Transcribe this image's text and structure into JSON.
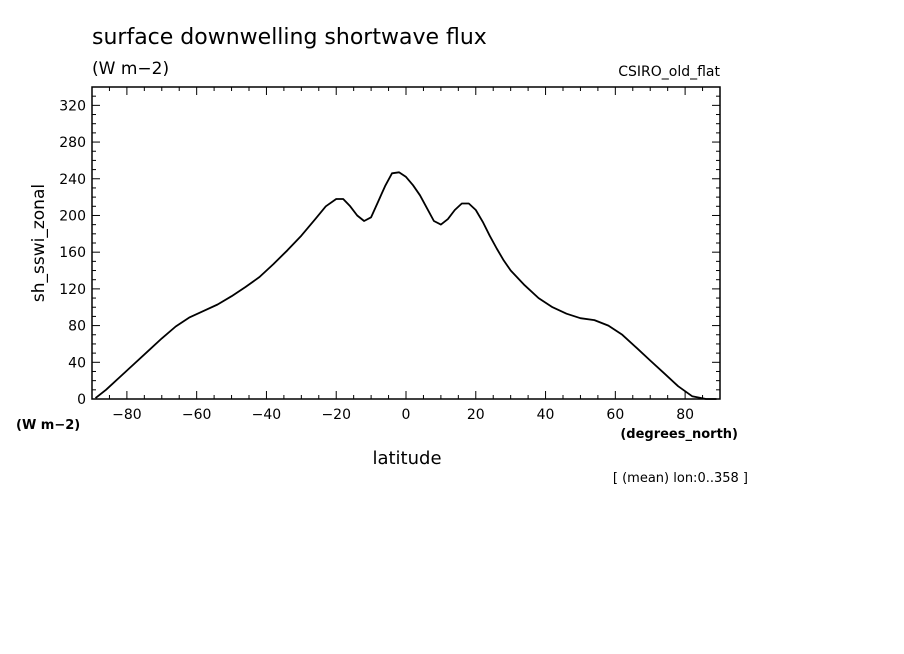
{
  "chart_data": {
    "type": "line",
    "title": "surface downwelling shortwave flux",
    "units": "(W m−2)",
    "model": "CSIRO_old_flat",
    "ylabel": "sh_sswi_zonal",
    "yunits": "(W m−2)",
    "xlabel": "latitude",
    "xunits": "(degrees_north)",
    "note": "[ (mean) lon:0..358 ]",
    "xlim": [
      -90,
      90
    ],
    "ylim": [
      0,
      340
    ],
    "xticks": [
      -80,
      -60,
      -40,
      -20,
      0,
      20,
      40,
      60,
      80
    ],
    "yticks": [
      0,
      40,
      80,
      120,
      160,
      200,
      240,
      280,
      320
    ],
    "xtick_labels": [
      "−80",
      "−60",
      "−40",
      "−20",
      "0",
      "20",
      "40",
      "60",
      "80"
    ],
    "ytick_labels": [
      "0",
      "40",
      "80",
      "120",
      "160",
      "200",
      "240",
      "280",
      "320"
    ],
    "series": [
      {
        "x": [
          -89,
          -86,
          -82,
          -78,
          -74,
          -70,
          -66,
          -62,
          -58,
          -54,
          -50,
          -46,
          -42,
          -38,
          -34,
          -30,
          -26,
          -23,
          -20,
          -18,
          -16,
          -14,
          -12,
          -10,
          -8,
          -6,
          -4,
          -2,
          0,
          2,
          4,
          6,
          8,
          10,
          12,
          14,
          16,
          18,
          20,
          22,
          24,
          26,
          28,
          30,
          34,
          38,
          42,
          46,
          50,
          54,
          58,
          62,
          66,
          70,
          74,
          78,
          82,
          86,
          89
        ],
        "y": [
          1,
          10,
          24,
          38,
          52,
          66,
          79,
          89,
          96,
          103,
          112,
          122,
          133,
          147,
          162,
          178,
          196,
          210,
          218,
          218,
          210,
          200,
          194,
          198,
          215,
          232,
          246,
          247,
          242,
          233,
          222,
          208,
          194,
          190,
          196,
          206,
          213,
          213,
          206,
          193,
          178,
          164,
          151,
          140,
          124,
          110,
          100,
          93,
          88,
          86,
          80,
          70,
          56,
          42,
          28,
          14,
          3,
          0,
          0
        ]
      }
    ]
  }
}
